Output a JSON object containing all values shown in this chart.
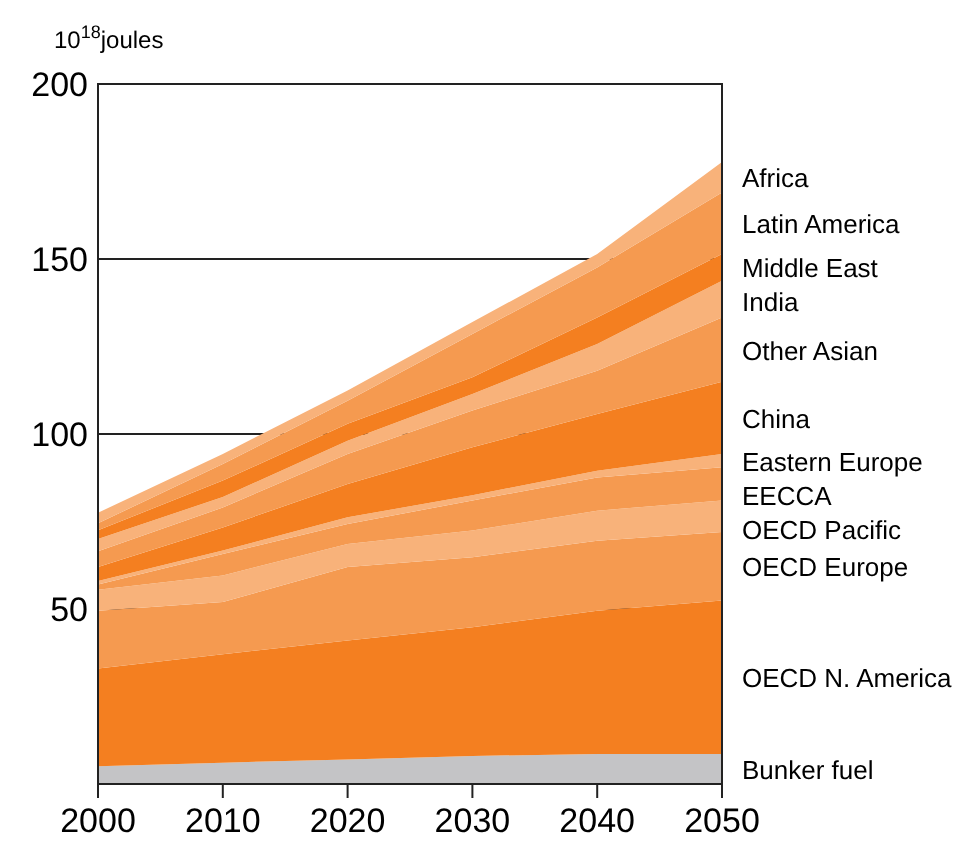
{
  "chart_data": {
    "type": "area",
    "stacked": true,
    "ylabel": "10$^{18}$joules",
    "x": [
      2000,
      2010,
      2020,
      2030,
      2040,
      2050
    ],
    "xlim": [
      2000,
      2050
    ],
    "xticks": [
      2000,
      2010,
      2020,
      2030,
      2040,
      2050
    ],
    "ylim": [
      0,
      200
    ],
    "yticks": [
      50,
      100,
      150,
      200
    ],
    "grid": "y",
    "legend": false,
    "series": [
      {
        "name": "Bunker fuel",
        "color": "#c4c4c6",
        "values": [
          5.1,
          6.1,
          7,
          8,
          8.6,
          8.6
        ]
      },
      {
        "name": "OECD N. America",
        "color": "#f47f20",
        "values": [
          27.9,
          31,
          34,
          36.8,
          40.9,
          43.8
        ]
      },
      {
        "name": "OECD Europe",
        "color": "#f59a50",
        "values": [
          16.5,
          14.9,
          21,
          20,
          20,
          19.6
        ]
      },
      {
        "name": "OECD Pacific",
        "color": "#f8b27a",
        "values": [
          6,
          7.6,
          6.6,
          7.6,
          8.6,
          9
        ]
      },
      {
        "name": "EECCA",
        "color": "#f59a50",
        "values": [
          1.5,
          6.1,
          5.7,
          8.6,
          9.5,
          9.5
        ]
      },
      {
        "name": "Eastern Europe",
        "color": "#f8b27a",
        "values": [
          1,
          1,
          1.9,
          1.5,
          1.9,
          3.8
        ]
      },
      {
        "name": "China",
        "color": "#f47f20",
        "values": [
          4,
          6.6,
          9.5,
          13.7,
          16.2,
          20.6
        ]
      },
      {
        "name": "Other Asian",
        "color": "#f59a50",
        "values": [
          4.5,
          5.7,
          8.6,
          10.5,
          12.4,
          18.4
        ]
      },
      {
        "name": "India",
        "color": "#f8b27a",
        "values": [
          3.5,
          3,
          3.8,
          4.7,
          7.6,
          10.5
        ]
      },
      {
        "name": "Middle East",
        "color": "#f47f20",
        "values": [
          2.5,
          4.7,
          4.8,
          4.8,
          7.6,
          7.6
        ]
      },
      {
        "name": "Latin America",
        "color": "#f59a50",
        "values": [
          2,
          4.7,
          6.6,
          12.4,
          14.3,
          17.6
        ]
      },
      {
        "name": "Africa",
        "color": "#f8b27a",
        "values": [
          3,
          2.9,
          2.9,
          3.4,
          3.8,
          8.7
        ]
      }
    ]
  }
}
